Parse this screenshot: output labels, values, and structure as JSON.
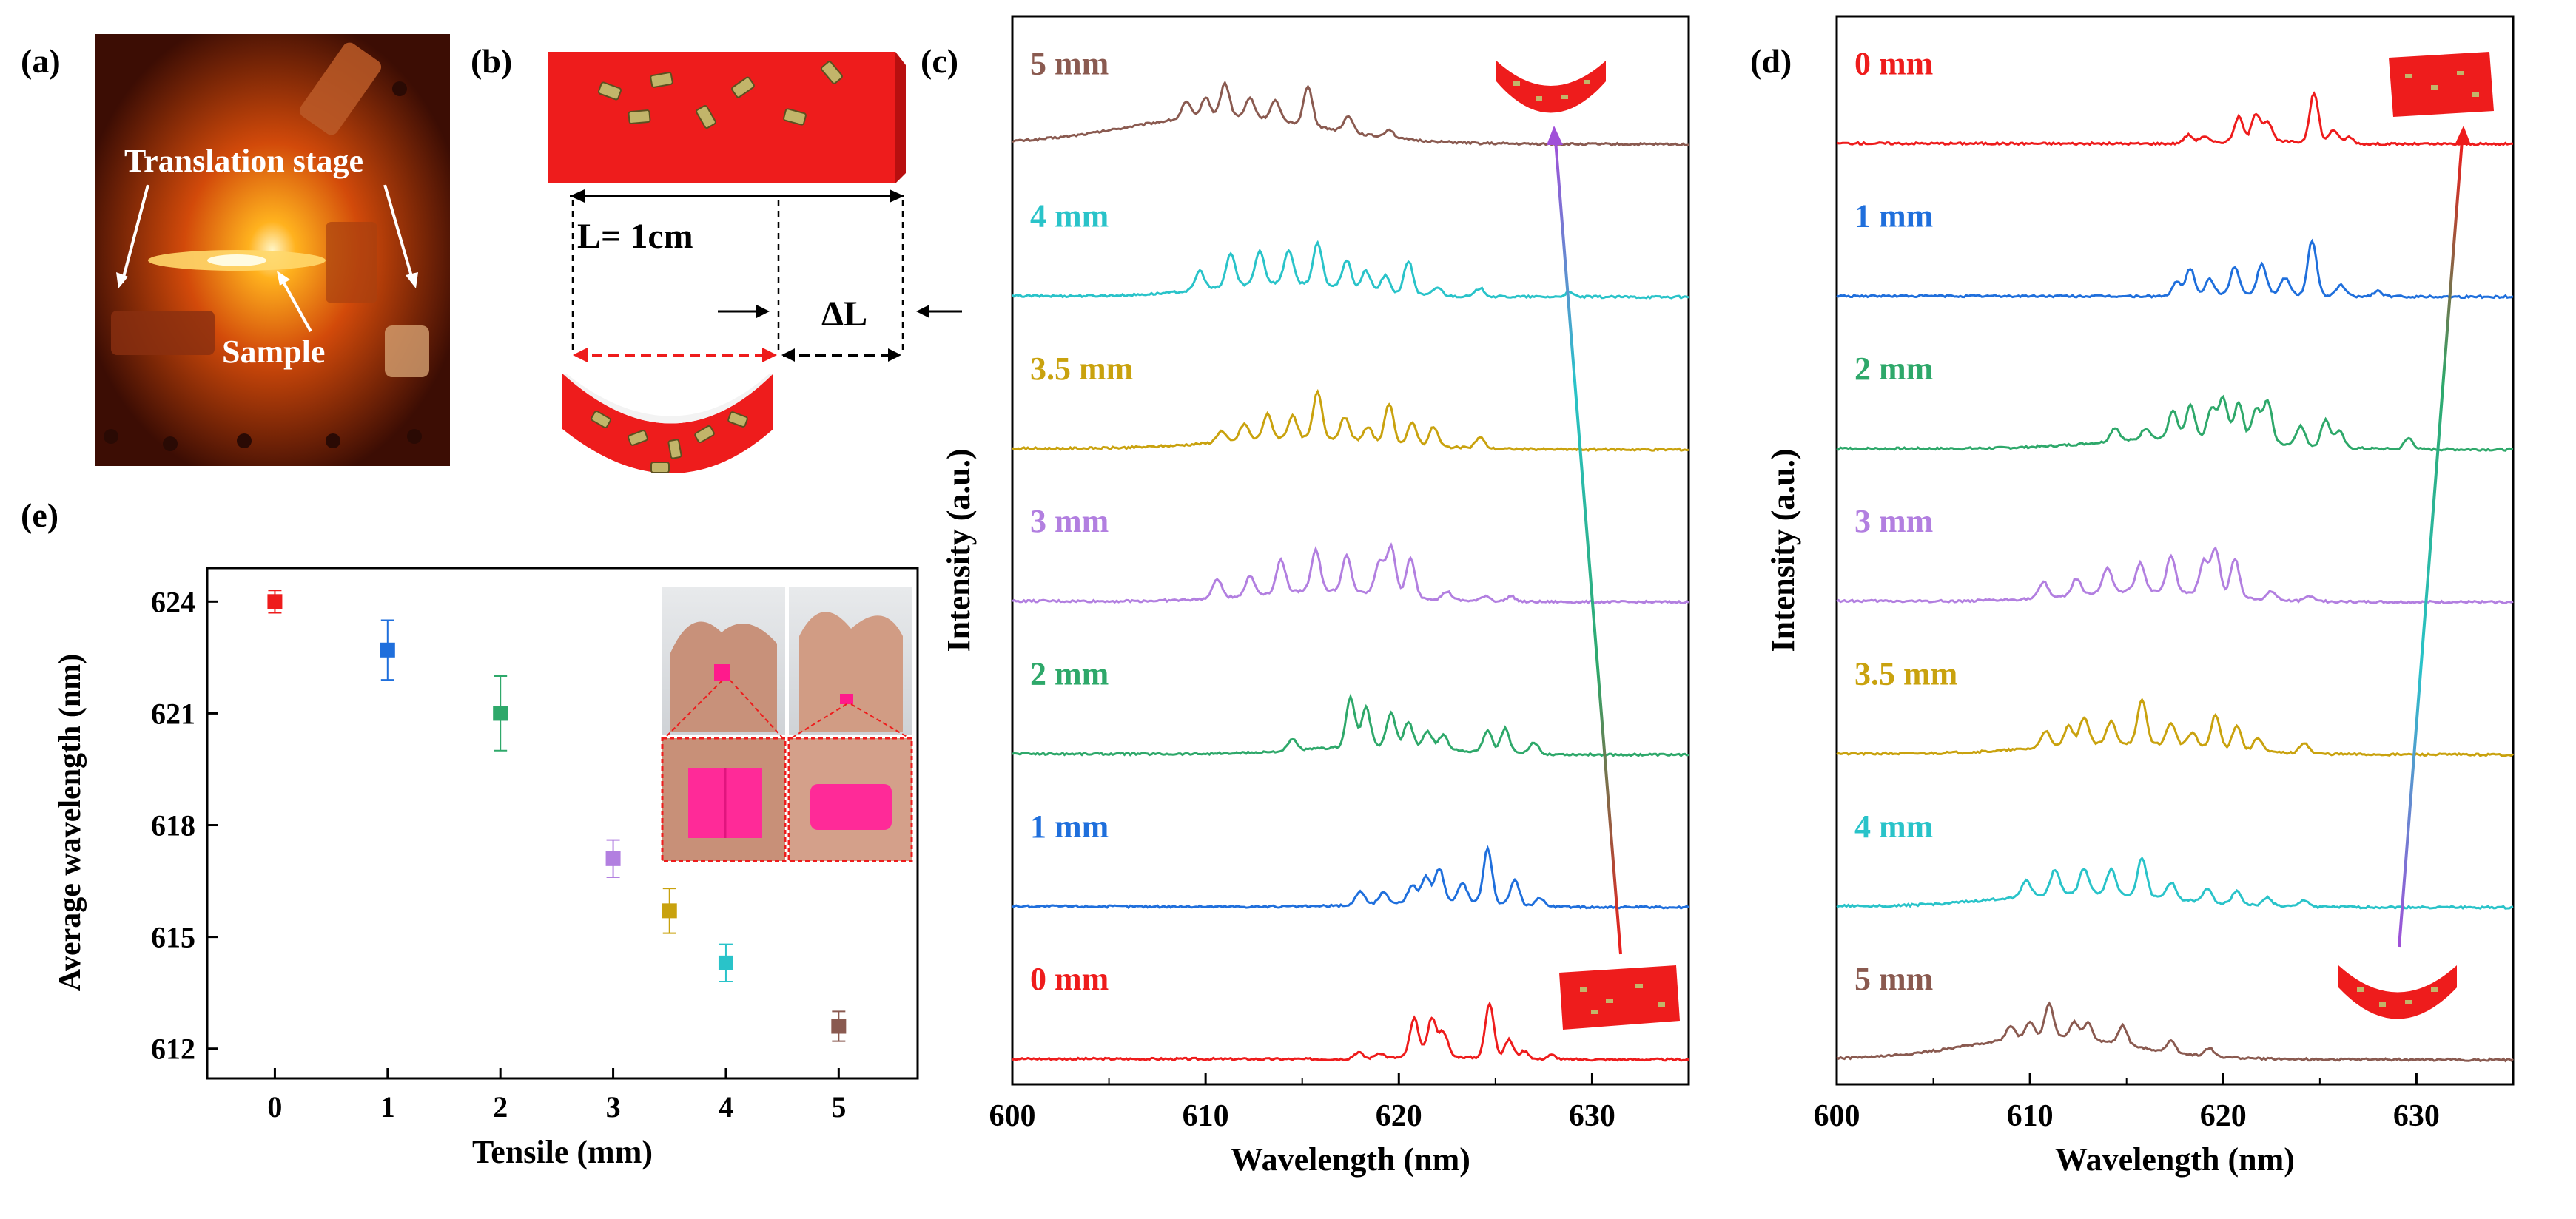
{
  "panel_labels": {
    "a": "(a)",
    "b": "(b)",
    "c": "(c)",
    "d": "(d)",
    "e": "(e)"
  },
  "colors": {
    "d0": "#ee1c1c",
    "d1": "#1f6fdc",
    "d2": "#2ea86a",
    "d3": "#b27fe0",
    "d35": "#c9a20e",
    "d4": "#29c3c9",
    "d5": "#8a5a50",
    "film": "#ee1c1c",
    "rod": "#c2b56a"
  },
  "photo": {
    "translation_stage": "Translation stage",
    "sample": "Sample"
  },
  "schematic": {
    "length_label": "L= 1cm",
    "delta_label": "ΔL"
  },
  "chart_data": [
    {
      "id": "c",
      "type": "line",
      "title": "",
      "xlabel": "Wavelength (nm)",
      "ylabel": "Intensity (a.u.)",
      "xlim": [
        600,
        635
      ],
      "xticks": [
        600,
        610,
        620,
        630
      ],
      "arrow": "bottom-to-top, flat film to bent film",
      "series": [
        {
          "name": "5 mm",
          "color_key": "d5",
          "baseline": 0.36,
          "bg": {
            "center": 611,
            "width": 7,
            "amp": 0.05
          },
          "peaks": [
            [
              609.0,
              0.03
            ],
            [
              610.0,
              0.035
            ],
            [
              611.0,
              0.06
            ],
            [
              612.3,
              0.035
            ],
            [
              613.6,
              0.035
            ],
            [
              615.3,
              0.07
            ],
            [
              617.4,
              0.03
            ],
            [
              619.5,
              0.015
            ]
          ]
        },
        {
          "name": "4 mm",
          "color_key": "d4",
          "baseline": 0.42,
          "bg": {
            "center": 614,
            "width": 5,
            "amp": 0.025
          },
          "peaks": [
            [
              609.7,
              0.035
            ],
            [
              611.3,
              0.06
            ],
            [
              612.8,
              0.06
            ],
            [
              614.3,
              0.06
            ],
            [
              615.8,
              0.075
            ],
            [
              617.3,
              0.05
            ],
            [
              618.3,
              0.035
            ],
            [
              619.3,
              0.03
            ],
            [
              620.5,
              0.06
            ],
            [
              622.0,
              0.015
            ],
            [
              624.2,
              0.015
            ],
            [
              628.8,
              0.008
            ]
          ]
        },
        {
          "name": "3.5 mm",
          "color_key": "d35",
          "baseline": 0.4,
          "bg": {
            "center": 615,
            "width": 6,
            "amp": 0.02
          },
          "peaks": [
            [
              610.8,
              0.02
            ],
            [
              612.0,
              0.03
            ],
            [
              613.2,
              0.045
            ],
            [
              614.5,
              0.04
            ],
            [
              615.8,
              0.085
            ],
            [
              617.2,
              0.04
            ],
            [
              618.4,
              0.025
            ],
            [
              619.5,
              0.07
            ],
            [
              620.7,
              0.04
            ],
            [
              621.8,
              0.035
            ],
            [
              624.2,
              0.02
            ]
          ]
        },
        {
          "name": "3 mm",
          "color_key": "d3",
          "baseline": 0.38,
          "bg": {
            "center": 616,
            "width": 5,
            "amp": 0.02
          },
          "peaks": [
            [
              610.6,
              0.035
            ],
            [
              612.3,
              0.035
            ],
            [
              613.9,
              0.06
            ],
            [
              615.7,
              0.075
            ],
            [
              617.3,
              0.065
            ],
            [
              619.0,
              0.06
            ],
            [
              619.6,
              0.09
            ],
            [
              620.6,
              0.07
            ],
            [
              622.5,
              0.015
            ],
            [
              624.5,
              0.01
            ],
            [
              625.8,
              0.01
            ]
          ]
        },
        {
          "name": "2 mm",
          "color_key": "d2",
          "baseline": 0.4,
          "bg": {
            "center": 619,
            "width": 5,
            "amp": 0.015
          },
          "peaks": [
            [
              614.5,
              0.02
            ],
            [
              617.5,
              0.09
            ],
            [
              618.3,
              0.07
            ],
            [
              619.6,
              0.06
            ],
            [
              620.5,
              0.045
            ],
            [
              621.5,
              0.03
            ],
            [
              622.3,
              0.025
            ],
            [
              624.6,
              0.04
            ],
            [
              625.5,
              0.045
            ],
            [
              627.0,
              0.02
            ]
          ]
        },
        {
          "name": "1 mm",
          "color_key": "d1",
          "baseline": 0.36,
          "bg": {
            "center": 622,
            "width": 4,
            "amp": 0.01
          },
          "peaks": [
            [
              618.0,
              0.025
            ],
            [
              619.2,
              0.02
            ],
            [
              620.7,
              0.03
            ],
            [
              621.4,
              0.045
            ],
            [
              622.1,
              0.06
            ],
            [
              623.3,
              0.035
            ],
            [
              624.6,
              0.1
            ],
            [
              626.0,
              0.045
            ],
            [
              627.3,
              0.015
            ]
          ]
        },
        {
          "name": "0 mm",
          "color_key": "d0",
          "baseline": 0.3,
          "bg": {
            "center": 622,
            "width": 3,
            "amp": 0.005
          },
          "peaks": [
            [
              617.9,
              0.012
            ],
            [
              619.0,
              0.01
            ],
            [
              620.8,
              0.07
            ],
            [
              621.7,
              0.07
            ],
            [
              622.3,
              0.045
            ],
            [
              624.7,
              0.1
            ],
            [
              625.7,
              0.035
            ],
            [
              626.5,
              0.015
            ],
            [
              627.9,
              0.008
            ]
          ]
        }
      ]
    },
    {
      "id": "d",
      "type": "line",
      "title": "",
      "xlabel": "Wavelength (nm)",
      "ylabel": "Intensity (a.u.)",
      "xlim": [
        600,
        635
      ],
      "xticks": [
        600,
        610,
        620,
        630
      ],
      "arrow": "bottom-to-top, bent film to flat film",
      "series": [
        {
          "name": "0 mm",
          "color_key": "d0",
          "baseline": 0.3,
          "bg": {
            "center": 622,
            "width": 3,
            "amp": 0.005
          },
          "peaks": [
            [
              618.2,
              0.015
            ],
            [
              619.0,
              0.012
            ],
            [
              620.8,
              0.045
            ],
            [
              621.7,
              0.05
            ],
            [
              622.3,
              0.035
            ],
            [
              624.7,
              0.09
            ],
            [
              625.7,
              0.025
            ],
            [
              626.5,
              0.012
            ]
          ]
        },
        {
          "name": "1 mm",
          "color_key": "d1",
          "baseline": 0.3,
          "bg": {
            "center": 622,
            "width": 3,
            "amp": 0.005
          },
          "peaks": [
            [
              617.6,
              0.025
            ],
            [
              618.3,
              0.05
            ],
            [
              619.3,
              0.03
            ],
            [
              620.6,
              0.05
            ],
            [
              622.0,
              0.055
            ],
            [
              623.2,
              0.03
            ],
            [
              624.6,
              0.1
            ],
            [
              626.1,
              0.02
            ],
            [
              628.0,
              0.01
            ]
          ]
        },
        {
          "name": "2 mm",
          "color_key": "d2",
          "baseline": 0.38,
          "bg": {
            "center": 618,
            "width": 6,
            "amp": 0.02
          },
          "peaks": [
            [
              614.4,
              0.025
            ],
            [
              616.0,
              0.02
            ],
            [
              617.4,
              0.05
            ],
            [
              618.3,
              0.06
            ],
            [
              619.4,
              0.055
            ],
            [
              620.0,
              0.075
            ],
            [
              620.8,
              0.07
            ],
            [
              621.7,
              0.06
            ],
            [
              622.3,
              0.075
            ],
            [
              624.0,
              0.035
            ],
            [
              625.3,
              0.05
            ],
            [
              626.0,
              0.03
            ],
            [
              629.6,
              0.02
            ]
          ]
        },
        {
          "name": "3 mm",
          "color_key": "d3",
          "baseline": 0.38,
          "bg": {
            "center": 616,
            "width": 5,
            "amp": 0.02
          },
          "peaks": [
            [
              610.7,
              0.03
            ],
            [
              612.4,
              0.03
            ],
            [
              614.0,
              0.045
            ],
            [
              615.7,
              0.05
            ],
            [
              617.3,
              0.065
            ],
            [
              619.0,
              0.06
            ],
            [
              619.6,
              0.085
            ],
            [
              620.6,
              0.07
            ],
            [
              622.5,
              0.015
            ],
            [
              624.5,
              0.01
            ]
          ]
        },
        {
          "name": "3.5 mm",
          "color_key": "d35",
          "baseline": 0.38,
          "bg": {
            "center": 615,
            "width": 6,
            "amp": 0.02
          },
          "peaks": [
            [
              610.8,
              0.03
            ],
            [
              612.0,
              0.035
            ],
            [
              612.8,
              0.05
            ],
            [
              614.2,
              0.04
            ],
            [
              615.8,
              0.08
            ],
            [
              617.3,
              0.04
            ],
            [
              618.4,
              0.025
            ],
            [
              619.6,
              0.06
            ],
            [
              620.7,
              0.045
            ],
            [
              621.8,
              0.025
            ],
            [
              624.2,
              0.02
            ]
          ]
        },
        {
          "name": "4 mm",
          "color_key": "d4",
          "baseline": 0.42,
          "bg": {
            "center": 613,
            "width": 6,
            "amp": 0.025
          },
          "peaks": [
            [
              609.8,
              0.03
            ],
            [
              611.3,
              0.045
            ],
            [
              612.8,
              0.045
            ],
            [
              614.2,
              0.045
            ],
            [
              615.8,
              0.07
            ],
            [
              617.3,
              0.03
            ],
            [
              619.2,
              0.025
            ],
            [
              620.7,
              0.025
            ],
            [
              622.3,
              0.015
            ],
            [
              624.2,
              0.012
            ]
          ]
        },
        {
          "name": "5 mm",
          "color_key": "d5",
          "baseline": 0.36,
          "bg": {
            "center": 611,
            "width": 6,
            "amp": 0.04
          },
          "peaks": [
            [
              609.0,
              0.025
            ],
            [
              610.0,
              0.03
            ],
            [
              611.0,
              0.06
            ],
            [
              612.3,
              0.03
            ],
            [
              613.0,
              0.03
            ],
            [
              614.8,
              0.035
            ],
            [
              617.3,
              0.02
            ],
            [
              619.3,
              0.015
            ]
          ]
        }
      ]
    },
    {
      "id": "e",
      "type": "scatter",
      "title": "",
      "xlabel": "Tensile (mm)",
      "ylabel": "Average wavelength (nm)",
      "xlim": [
        -0.6,
        5.7
      ],
      "ylim": [
        611.2,
        624.9
      ],
      "xticks": [
        0,
        1,
        2,
        3,
        4,
        5
      ],
      "yticks": [
        612,
        615,
        618,
        621,
        624
      ],
      "points": [
        {
          "x": 0,
          "y": 624.0,
          "err": 0.3,
          "color_key": "d0"
        },
        {
          "x": 1,
          "y": 622.7,
          "err": 0.8,
          "color_key": "d1"
        },
        {
          "x": 2,
          "y": 621.0,
          "err": 1.0,
          "color_key": "d2"
        },
        {
          "x": 3,
          "y": 617.1,
          "err": 0.5,
          "color_key": "d3"
        },
        {
          "x": 3.5,
          "y": 615.7,
          "err": 0.6,
          "color_key": "d35"
        },
        {
          "x": 4,
          "y": 614.3,
          "err": 0.5,
          "color_key": "d4"
        },
        {
          "x": 5,
          "y": 612.6,
          "err": 0.4,
          "color_key": "d5"
        }
      ]
    }
  ]
}
